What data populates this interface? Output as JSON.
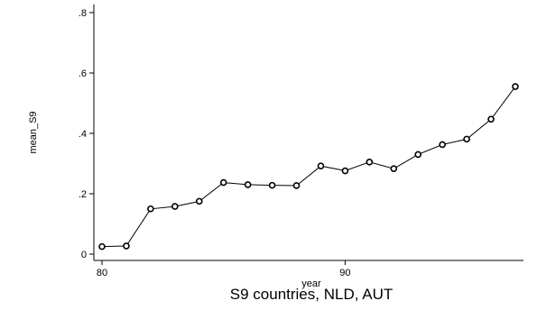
{
  "chart_data": {
    "type": "line",
    "title": "",
    "xlabel": "year",
    "ylabel": "mean_S9",
    "note": "S9 countries, NLD, AUT",
    "x": [
      80,
      81,
      82,
      83,
      84,
      85,
      86,
      87,
      88,
      89,
      90,
      91,
      92,
      93,
      94,
      95,
      96,
      97
    ],
    "y": [
      0.025,
      0.027,
      0.15,
      0.158,
      0.175,
      0.237,
      0.23,
      0.228,
      0.227,
      0.292,
      0.276,
      0.305,
      0.283,
      0.33,
      0.363,
      0.381,
      0.447,
      0.555
    ],
    "xlim": [
      79.8,
      97.3
    ],
    "ylim": [
      -0.02,
      0.82
    ],
    "xticks": [
      80,
      90
    ],
    "xtick_labels": [
      "80",
      "90"
    ],
    "yticks": [
      0,
      0.2,
      0.4,
      0.6,
      0.8
    ],
    "ytick_labels": [
      "0",
      ".2",
      ".4",
      ".6",
      ".8"
    ],
    "grid": false,
    "legend": "none",
    "marker": "hollow-circle",
    "colors": {
      "line": "#000000",
      "marker": "#000000",
      "background": "#ffffff"
    }
  }
}
